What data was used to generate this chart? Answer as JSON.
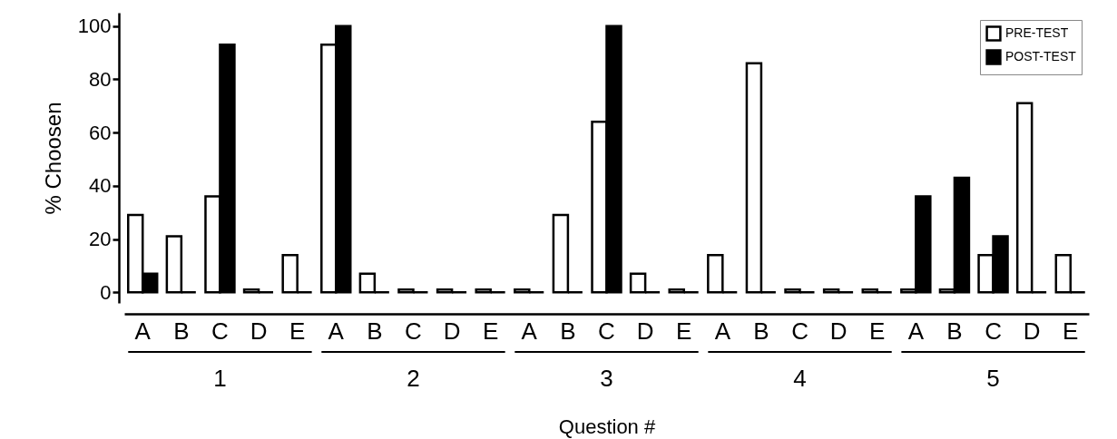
{
  "chart_data": {
    "type": "bar",
    "categories": [
      "A",
      "B",
      "C",
      "D",
      "E",
      "A",
      "B",
      "C",
      "D",
      "E",
      "A",
      "B",
      "C",
      "D",
      "E",
      "A",
      "B",
      "C",
      "D",
      "E",
      "A",
      "B",
      "C",
      "D",
      "E"
    ],
    "series": [
      {
        "name": "PRE-TEST",
        "color": "#ffffff",
        "values": [
          29,
          21,
          36,
          1,
          14,
          93,
          7,
          1,
          1,
          1,
          1,
          29,
          64,
          7,
          1,
          14,
          86,
          1,
          1,
          1,
          1,
          1,
          14,
          71,
          14
        ]
      },
      {
        "name": "POST-TEST",
        "color": "#000000",
        "values": [
          7,
          0,
          93,
          0,
          0,
          100,
          0,
          0,
          0,
          0,
          0,
          0,
          100,
          0,
          0,
          0,
          0,
          0,
          0,
          0,
          36,
          43,
          21,
          0,
          0
        ]
      }
    ],
    "annotations": [
      "1",
      "2",
      "3",
      "4",
      "5"
    ],
    "xlabel": "Question #",
    "ylabel": "% Choosen",
    "ylim": [
      -4,
      105
    ],
    "yticks": [
      0,
      20,
      40,
      60,
      80,
      100
    ],
    "grid": false,
    "legend": "top right"
  }
}
